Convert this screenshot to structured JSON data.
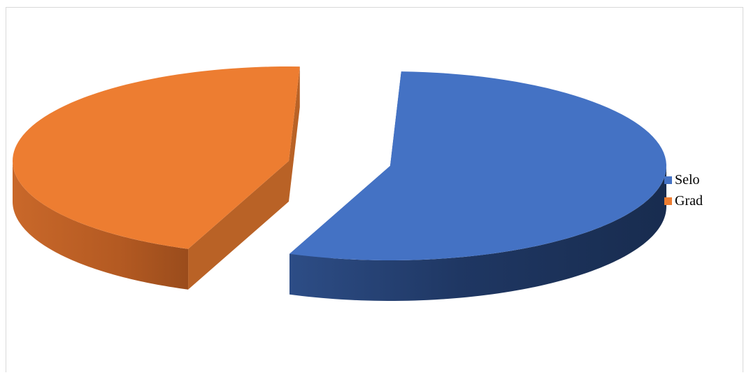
{
  "chart_data": {
    "type": "pie",
    "style": "3d-exploded",
    "slices": [
      {
        "label": "Selo",
        "value": 55.3,
        "color": "#4472C4"
      },
      {
        "label": "Grad",
        "value": 44.7,
        "color": "#ED7D31"
      }
    ],
    "title": "",
    "legend_position": "right"
  }
}
